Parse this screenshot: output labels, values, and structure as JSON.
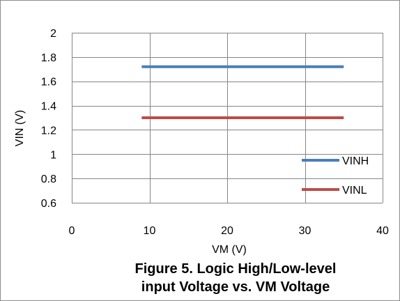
{
  "chart_data": {
    "type": "line",
    "title": "Figure 5.  Logic High/Low-level input Voltage vs. VM Voltage",
    "title_lines": [
      "Figure 5.  Logic High/Low-level",
      "input Voltage vs. VM Voltage"
    ],
    "xlabel": "VM (V)",
    "ylabel": "VIN (V)",
    "xlim": [
      0,
      40
    ],
    "ylim": [
      0.6,
      2
    ],
    "x_ticks": [
      0,
      10,
      20,
      30,
      40
    ],
    "x_tick_labels": [
      "0",
      "10",
      "20",
      "30",
      "40"
    ],
    "y_ticks": [
      0.6,
      0.8,
      1.0,
      1.2,
      1.4,
      1.6,
      1.8,
      2.0
    ],
    "y_tick_labels": [
      "0.6",
      "0.8",
      "1",
      "1.2",
      "1.4",
      "1.6",
      "1.8",
      "2"
    ],
    "grid": true,
    "legend_position": "bottom-right",
    "series": [
      {
        "name": "VINH",
        "color": "#4a7ebb",
        "x": [
          9,
          35
        ],
        "y": [
          1.72,
          1.72
        ]
      },
      {
        "name": "VINL",
        "color": "#be4b48",
        "x": [
          9,
          35
        ],
        "y": [
          1.3,
          1.3
        ]
      }
    ]
  }
}
